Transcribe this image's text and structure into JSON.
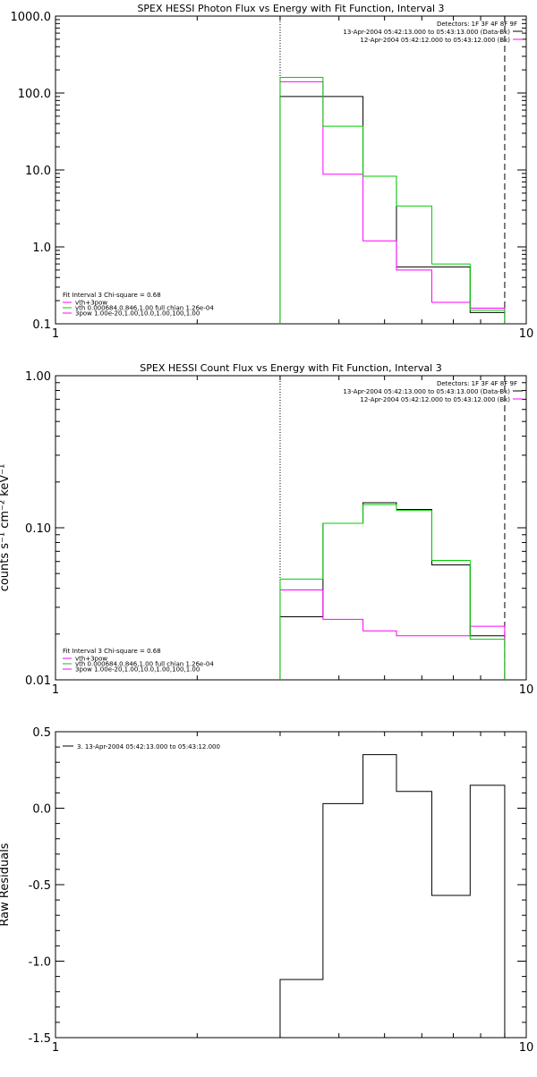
{
  "chart_data": [
    {
      "type": "line",
      "title": "SPEX HESSI Photon Flux vs Energy with Fit Function, Interval 3",
      "ylabel": "",
      "xlim": [
        1,
        10
      ],
      "ylim": [
        0.1,
        1000
      ],
      "x_scale": "log",
      "y_scale": "log",
      "x_ticks": [
        {
          "value": 1,
          "label": "1"
        },
        {
          "value": 10,
          "label": "10"
        }
      ],
      "y_ticks": [
        {
          "value": 0.1,
          "label": "0.1"
        },
        {
          "value": 1,
          "label": "1.0"
        },
        {
          "value": 10,
          "label": "10.0"
        },
        {
          "value": 100,
          "label": "100.0"
        },
        {
          "value": 1000,
          "label": "1000.0"
        }
      ],
      "bin_edges": [
        3.0,
        3.7,
        4.5,
        5.3,
        6.3,
        7.6,
        9.0
      ],
      "vlines": [
        {
          "x": 3.0,
          "style": "dotted"
        },
        {
          "x": 9.0,
          "style": "dashed"
        }
      ],
      "series": [
        {
          "name": "",
          "color": "#000000",
          "values": [
            90,
            90,
            8.3,
            0.55,
            0.55,
            0.14
          ]
        },
        {
          "name": "",
          "color": "#ff00ff",
          "values": [
            140,
            8.8,
            1.2,
            0.5,
            0.19,
            0.16
          ]
        },
        {
          "name": "",
          "color": "#00cc00",
          "values": [
            160,
            37,
            8.3,
            3.4,
            0.6,
            0.15
          ]
        }
      ],
      "legend_top": {
        "header": "Detectors: 1F 3F 4F 8F 9F",
        "entries": [
          {
            "text": "13-Apr-2004 05:42:13.000 to 05:43:13.000 (Data-Bk)",
            "color": "#000000"
          },
          {
            "text": "12-Apr-2004 05:42:12.000 to 05:43:12.000 (Bk)",
            "color": "#ff00ff"
          }
        ]
      },
      "legend_bottom": {
        "header": "Fit Interval 3   Chi-square = 0.68",
        "entries": [
          {
            "text": "vth+3pow",
            "color": "#ff00ff"
          },
          {
            "text": "vth 0.000684,0.846,1.00   full chian 1.26e-04",
            "color": "#00cc00"
          },
          {
            "text": "3pow 1.00e-20,1.00,10.0,1.00,100,1.00",
            "color": "#ff00ff"
          }
        ]
      }
    },
    {
      "type": "line",
      "title": "SPEX HESSI Count Flux vs Energy with Fit Function, Interval 3",
      "ylabel": "counts s⁻¹ cm⁻² keV⁻¹",
      "xlim": [
        1,
        10
      ],
      "ylim": [
        0.01,
        1.0
      ],
      "x_scale": "log",
      "y_scale": "log",
      "x_ticks": [
        {
          "value": 1,
          "label": "1"
        },
        {
          "value": 10,
          "label": "10"
        }
      ],
      "y_ticks": [
        {
          "value": 0.01,
          "label": "0.01"
        },
        {
          "value": 0.1,
          "label": "0.10"
        },
        {
          "value": 1.0,
          "label": "1.00"
        }
      ],
      "bin_edges": [
        3.0,
        3.7,
        4.5,
        5.3,
        6.3,
        7.6,
        9.0
      ],
      "vlines": [
        {
          "x": 3.0,
          "style": "dotted"
        },
        {
          "x": 9.0,
          "style": "dashed"
        }
      ],
      "series": [
        {
          "name": "",
          "color": "#000000",
          "values": [
            0.026,
            0.107,
            0.146,
            0.132,
            0.057,
            0.0195
          ]
        },
        {
          "name": "",
          "color": "#ff00ff",
          "values": [
            0.039,
            0.025,
            0.021,
            0.0195,
            0.0195,
            0.0225
          ]
        },
        {
          "name": "",
          "color": "#00cc00",
          "values": [
            0.046,
            0.107,
            0.142,
            0.13,
            0.061,
            0.0185
          ]
        }
      ],
      "legend_top": {
        "header": "Detectors: 1F 3F 4F 8F 9F",
        "entries": [
          {
            "text": "13-Apr-2004 05:42:13.000 to 05:43:13.000 (Data-Bk)",
            "color": "#000000"
          },
          {
            "text": "12-Apr-2004 05:42:12.000 to 05:43:12.000 (Bk)",
            "color": "#ff00ff"
          }
        ]
      },
      "legend_bottom": {
        "header": "Fit Interval 3   Chi-square = 0.68",
        "entries": [
          {
            "text": "vth+3pow",
            "color": "#ff00ff"
          },
          {
            "text": "vth 0.000684,0.846,1.00   full chian 1.26e-04",
            "color": "#00cc00"
          },
          {
            "text": "3pow 1.00e-20,1.00,10.0,1.00,100,1.00",
            "color": "#ff00ff"
          }
        ]
      }
    },
    {
      "type": "line",
      "title": "",
      "ylabel": "Raw Residuals",
      "xlim": [
        1,
        10
      ],
      "ylim": [
        -1.5,
        0.5
      ],
      "x_scale": "log",
      "y_scale": "linear",
      "x_ticks": [
        {
          "value": 1,
          "label": "1"
        },
        {
          "value": 10,
          "label": "10"
        }
      ],
      "y_ticks": [
        {
          "value": -1.5,
          "label": "-1.5"
        },
        {
          "value": -1.0,
          "label": "-1.0"
        },
        {
          "value": -0.5,
          "label": "-0.5"
        },
        {
          "value": 0.0,
          "label": "0.0"
        },
        {
          "value": 0.5,
          "label": "0.5"
        }
      ],
      "bin_edges": [
        3.0,
        3.7,
        4.5,
        5.3,
        6.3,
        7.6,
        9.0
      ],
      "series": [
        {
          "name": "",
          "color": "#000000",
          "values": [
            -1.12,
            0.03,
            0.35,
            0.11,
            -0.57,
            0.15
          ]
        }
      ],
      "legend_top": {
        "header": "",
        "entries": [
          {
            "text": "3. 13-Apr-2004 05:42:13.000 to 05:43:12.000",
            "color": "#000000"
          }
        ]
      }
    }
  ]
}
